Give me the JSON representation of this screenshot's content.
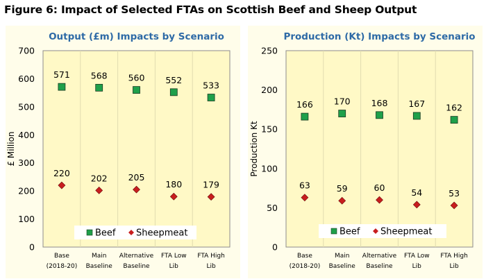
{
  "figure_title": "Figure 6: Impact of Selected FTAs on Scottish Beef and Sheep Output",
  "colors": {
    "panel_bg": "#fffdea",
    "plot_bg": "#fff9c6",
    "title": "#2e6aa6",
    "beef": "#1fa04a",
    "sheepmeat": "#c81e1e"
  },
  "chart_data": [
    {
      "type": "scatter",
      "title": "Output (£m) Impacts by Scenario",
      "xlabel": "",
      "ylabel": "£ Million",
      "ylim": [
        0,
        700
      ],
      "yticks": [
        0,
        100,
        200,
        300,
        400,
        500,
        600,
        700
      ],
      "categories": [
        [
          "Base",
          "(2018-20)"
        ],
        [
          "Main",
          "Baseline"
        ],
        [
          "Alternative",
          "Baseline"
        ],
        [
          "FTA Low",
          "Lib"
        ],
        [
          "FTA High",
          "Lib"
        ]
      ],
      "series": [
        {
          "name": "Beef",
          "marker": "square",
          "values": [
            571,
            568,
            560,
            552,
            533
          ]
        },
        {
          "name": "Sheepmeat",
          "marker": "diamond",
          "values": [
            220,
            202,
            205,
            180,
            179
          ]
        }
      ],
      "grid": "vertical",
      "legend": "bottom-center"
    },
    {
      "type": "scatter",
      "title": "Production (Kt) Impacts by Scenario",
      "xlabel": "",
      "ylabel": "Production Kt",
      "ylim": [
        0,
        250
      ],
      "yticks": [
        0,
        50,
        100,
        150,
        200,
        250
      ],
      "categories": [
        [
          "Base",
          "(2018-20)"
        ],
        [
          "Main",
          "Baseline"
        ],
        [
          "Alternative",
          "Baseline"
        ],
        [
          "FTA Low",
          "Lib"
        ],
        [
          "FTA High",
          "Lib"
        ]
      ],
      "series": [
        {
          "name": "Beef",
          "marker": "square",
          "values": [
            166,
            170,
            168,
            167,
            162
          ]
        },
        {
          "name": "Sheepmeat",
          "marker": "diamond",
          "values": [
            63,
            59,
            60,
            54,
            53
          ]
        }
      ],
      "grid": "vertical",
      "legend": "bottom-center"
    }
  ]
}
